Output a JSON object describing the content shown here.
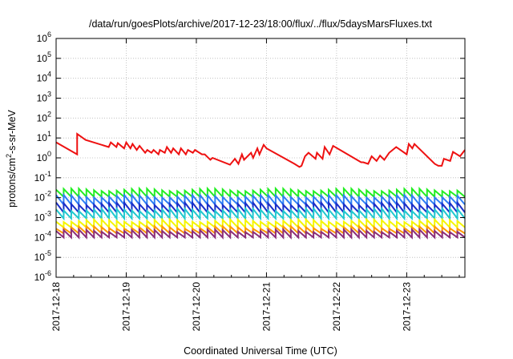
{
  "chart_data": {
    "type": "line",
    "title": "/data/run/goesPlots/archive/2017-12-23/18:00/flux/../flux/5daysMarsFluxes.txt",
    "xlabel": "Coordinated Universal Time (UTC)",
    "ylabel": "protons/cm²-s-sr-MeV",
    "ylabel_parts": [
      "protons/cm",
      "2",
      "-s-sr-MeV"
    ],
    "yscale": "log",
    "ylim": [
      1e-06,
      1000000.0
    ],
    "xlim": [
      0,
      5.83
    ],
    "x_unit": "days since 2017-12-18 00:00 UTC",
    "x_ticks": [
      {
        "x": 0,
        "label": "2017-12-18"
      },
      {
        "x": 1,
        "label": "2017-12-19"
      },
      {
        "x": 2,
        "label": "2017-12-20"
      },
      {
        "x": 3,
        "label": "2017-12-21"
      },
      {
        "x": 4,
        "label": "2017-12-22"
      },
      {
        "x": 5,
        "label": "2017-12-23"
      }
    ],
    "y_ticks": [
      {
        "exp": "6"
      },
      {
        "exp": "5"
      },
      {
        "exp": "4"
      },
      {
        "exp": "3"
      },
      {
        "exp": "2"
      },
      {
        "exp": "1"
      },
      {
        "exp": "0"
      },
      {
        "exp": "-1"
      },
      {
        "exp": "-2"
      },
      {
        "exp": "-3"
      },
      {
        "exp": "-4"
      },
      {
        "exp": "-5"
      },
      {
        "exp": "-6"
      }
    ],
    "grid": true,
    "legend": "none",
    "red_series": {
      "color": "#ee1111",
      "x": [
        0,
        0.3,
        0.3,
        0.42,
        0.75,
        0.78,
        0.86,
        0.88,
        0.97,
        1.0,
        1.06,
        1.09,
        1.15,
        1.19,
        1.27,
        1.3,
        1.36,
        1.39,
        1.46,
        1.48,
        1.55,
        1.58,
        1.64,
        1.67,
        1.75,
        1.78,
        1.85,
        1.88,
        1.95,
        1.98,
        2.08,
        2.12,
        2.2,
        2.23,
        2.48,
        2.55,
        2.6,
        2.65,
        2.68,
        2.78,
        2.81,
        2.87,
        2.9,
        2.96,
        3.0,
        3.4,
        3.47,
        3.5,
        3.55,
        3.6,
        3.7,
        3.72,
        3.8,
        3.83,
        3.9,
        3.95,
        4.05,
        4.35,
        4.38,
        4.45,
        4.5,
        4.57,
        4.62,
        4.68,
        4.75,
        4.85,
        5.0,
        5.03,
        5.08,
        5.11,
        5.4,
        5.45,
        5.5,
        5.53,
        5.62,
        5.66,
        5.76,
        5.83
      ],
      "values": [
        6,
        1.5,
        16,
        8,
        3.5,
        6,
        3.5,
        5.5,
        3,
        6,
        3,
        5,
        2.5,
        4,
        1.8,
        2.5,
        1.8,
        2.5,
        1.5,
        2.5,
        1.8,
        3.5,
        1.8,
        3,
        1.5,
        3,
        1.5,
        2.5,
        1.8,
        2.5,
        1.5,
        1.5,
        0.8,
        1,
        0.45,
        0.9,
        0.5,
        1.5,
        0.8,
        1.8,
        1,
        3,
        1.5,
        4.5,
        3,
        0.5,
        0.35,
        0.4,
        1.2,
        1.8,
        0.9,
        1.8,
        0.9,
        3.5,
        1.5,
        4,
        2.5,
        0.6,
        0.6,
        0.5,
        1.2,
        0.7,
        1.3,
        0.8,
        1.8,
        3.5,
        1.5,
        5,
        3,
        5,
        0.5,
        0.4,
        0.4,
        0.9,
        0.7,
        2,
        1.2,
        2.5
      ]
    },
    "band_series": [
      {
        "color": "#22ee22",
        "peak": 0.025,
        "trough": 0.011
      },
      {
        "color": "#2f7ff5",
        "peak": 0.012,
        "trough": 0.0045
      },
      {
        "color": "#1a2ec8",
        "peak": 0.005,
        "trough": 0.0018
      },
      {
        "color": "#22c9cf",
        "peak": 0.0025,
        "trough": 0.0009
      },
      {
        "color": "#f5f500",
        "peak": 0.0007,
        "trough": 0.00032
      },
      {
        "color": "#ff9900",
        "peak": 0.00032,
        "trough": 0.00016
      },
      {
        "color": "#8b2e7a",
        "peak": 0.00022,
        "trough": 0.0001
      }
    ],
    "band_teeth_count": 54
  }
}
